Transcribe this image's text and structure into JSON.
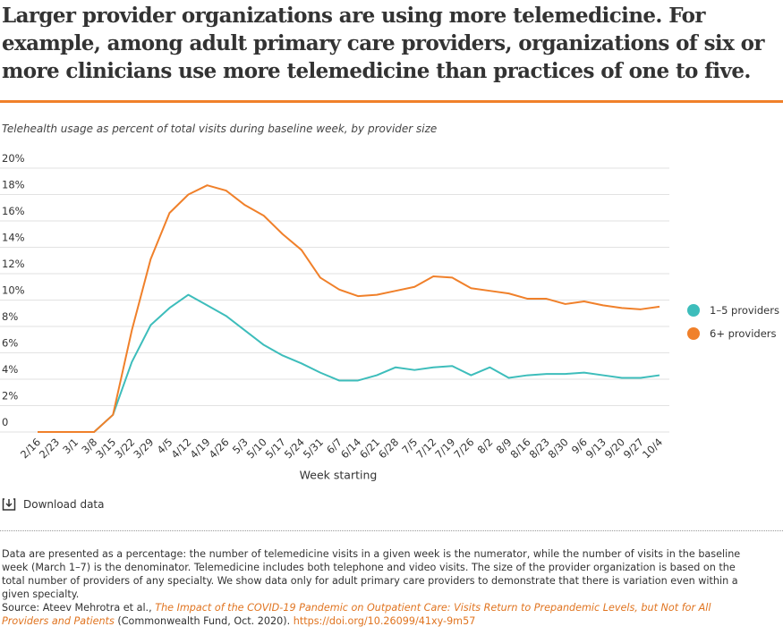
{
  "header": {
    "title": "Larger provider organizations are using more telemedicine. For example, among adult primary care providers, organizations of six or more clinicians use more telemedicine than practices of one to five."
  },
  "chart_data": {
    "type": "line",
    "subtitle": "Telehealth usage as percent of total visits during baseline week, by provider size",
    "xlabel": "Week starting",
    "categories": [
      "2/16",
      "2/23",
      "3/1",
      "3/8",
      "3/15",
      "3/22",
      "3/29",
      "4/5",
      "4/12",
      "4/19",
      "4/26",
      "5/3",
      "5/10",
      "5/17",
      "5/24",
      "5/31",
      "6/7",
      "6/14",
      "6/21",
      "6/28",
      "7/5",
      "7/12",
      "7/19",
      "7/26",
      "8/2",
      "8/9",
      "8/16",
      "8/23",
      "8/30",
      "9/6",
      "9/13",
      "9/20",
      "9/27",
      "10/4"
    ],
    "series": [
      {
        "name": "1–5 providers",
        "color": "#3dbdbb",
        "values": [
          0,
          0,
          0,
          0,
          1.3,
          5.3,
          8.1,
          9.4,
          10.4,
          9.6,
          8.8,
          7.7,
          6.6,
          5.8,
          5.2,
          4.5,
          3.9,
          3.9,
          4.3,
          4.9,
          4.7,
          4.9,
          5.0,
          4.3,
          4.9,
          4.1,
          4.3,
          4.4,
          4.4,
          4.5,
          4.3,
          4.1,
          4.1,
          4.3
        ]
      },
      {
        "name": "6+ providers",
        "color": "#f0802a",
        "values": [
          0,
          0,
          0,
          0,
          1.3,
          7.7,
          13.1,
          16.6,
          18.0,
          18.7,
          18.3,
          17.2,
          16.4,
          15.0,
          13.8,
          11.7,
          10.8,
          10.3,
          10.4,
          10.7,
          11.0,
          11.8,
          11.7,
          10.9,
          10.7,
          10.5,
          10.1,
          10.1,
          9.7,
          9.9,
          9.6,
          9.4,
          9.3,
          9.5
        ]
      }
    ],
    "ylim": [
      0,
      20
    ],
    "yticks": [
      0,
      {
        "value": 2,
        "label": "2%"
      },
      {
        "value": 4,
        "label": "4%"
      },
      {
        "value": 6,
        "label": "6%"
      },
      {
        "value": 8,
        "label": "8%"
      },
      {
        "value": 10,
        "label": "10%"
      },
      {
        "value": 12,
        "label": "12%"
      },
      {
        "value": 14,
        "label": "14%"
      },
      {
        "value": 16,
        "label": "16%"
      },
      {
        "value": 18,
        "label": "18%"
      },
      {
        "value": 20,
        "label": "20%"
      }
    ],
    "grid": true,
    "legend": "right"
  },
  "download": "Download data",
  "notes": "Data are presented as a percentage: the number of telemedicine visits in a given week is the numerator, while the number of visits in the baseline week (March 1–7) is the denominator. Telemedicine includes both telephone and video visits. The size of the provider organization is based on the total number of providers of any specialty. We show data only for adult primary care providers to demonstrate that there is variation even within a given specialty.",
  "source": {
    "prefix": "Source: Ateev Mehrotra et al.,",
    "link_title": "The Impact of the COVID-19 Pandemic on Outpatient Care: Visits Return to Prepandemic Levels, but Not for All Providers and Patients",
    "suffix": "(Commonwealth Fund, Oct. 2020).",
    "doi": "https://doi.org/10.26099/41xy-9m57"
  }
}
